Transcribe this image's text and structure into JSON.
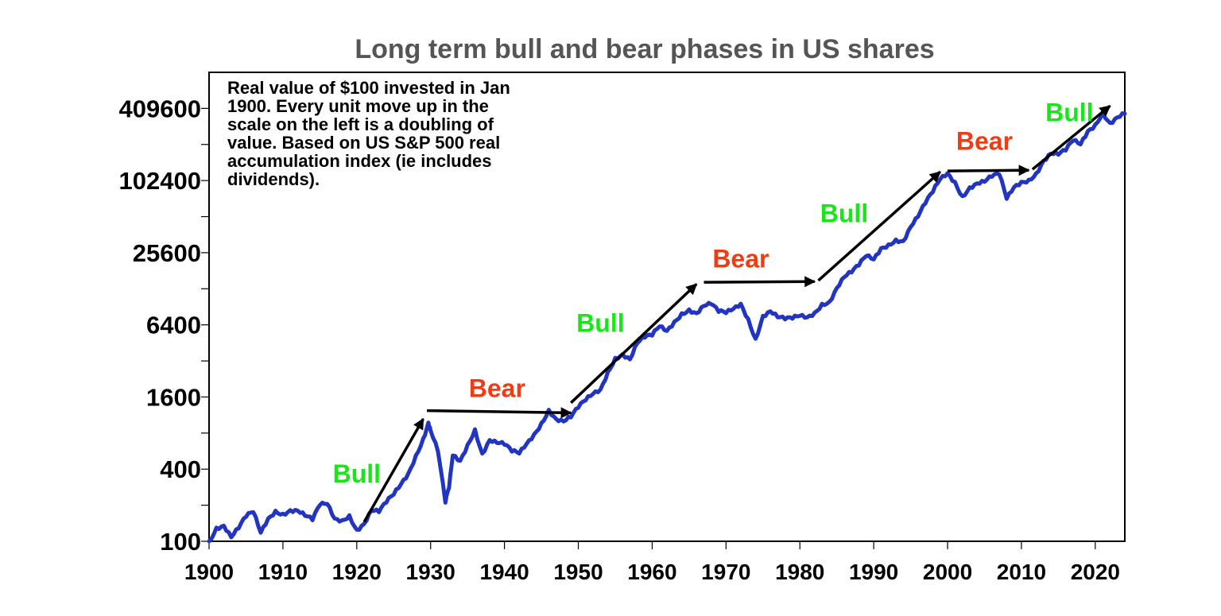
{
  "chart_data": {
    "type": "line",
    "title": "Long term bull and bear phases in US shares",
    "annotation_lines": [
      "Real value of $100 invested in Jan",
      "1900. Every unit move up in the",
      "scale on the left is a doubling of",
      "value. Based on US S&P 500 real",
      "accumulation index (ie includes",
      "dividends)."
    ],
    "y_scale": "log2",
    "ylim": [
      100,
      819200
    ],
    "xlim": [
      1900,
      2024
    ],
    "y_ticks": [
      100,
      400,
      1600,
      6400,
      25600,
      102400,
      409600
    ],
    "y_tick_labels": [
      "100",
      "400",
      "1600",
      "6400",
      "25600",
      "102400",
      "409600"
    ],
    "y_minor_ticks": [
      200,
      800,
      3200,
      12800,
      51200,
      204800
    ],
    "x_ticks": [
      1900,
      1910,
      1920,
      1930,
      1940,
      1950,
      1960,
      1970,
      1980,
      1990,
      2000,
      2010,
      2020
    ],
    "x_tick_labels": [
      "1900",
      "1910",
      "1920",
      "1930",
      "1940",
      "1950",
      "1960",
      "1970",
      "1980",
      "1990",
      "2000",
      "2010",
      "2020"
    ],
    "grid": false,
    "series": [
      {
        "color": "#2235C0",
        "x": [
          1900,
          1901,
          1902,
          1903,
          1904,
          1905,
          1906,
          1907,
          1908,
          1909,
          1910,
          1911,
          1912,
          1913,
          1914,
          1915,
          1916,
          1917,
          1918,
          1919,
          1920,
          1921,
          1922,
          1923,
          1924,
          1925,
          1926,
          1927,
          1928,
          1929,
          1929.7,
          1930,
          1931,
          1932,
          1932.5,
          1933,
          1934,
          1935,
          1936,
          1937,
          1938,
          1939,
          1940,
          1941,
          1942,
          1943,
          1944,
          1945,
          1946,
          1947,
          1948,
          1949,
          1950,
          1951,
          1952,
          1953,
          1954,
          1955,
          1956,
          1957,
          1958,
          1959,
          1960,
          1961,
          1962,
          1963,
          1964,
          1965,
          1966,
          1967,
          1968,
          1969,
          1970,
          1971,
          1972,
          1973,
          1974,
          1975,
          1976,
          1977,
          1978,
          1979,
          1980,
          1981,
          1982,
          1983,
          1984,
          1985,
          1986,
          1987,
          1988,
          1989,
          1990,
          1991,
          1992,
          1993,
          1994,
          1995,
          1996,
          1997,
          1998,
          1999,
          2000,
          2001,
          2002,
          2003,
          2004,
          2005,
          2006,
          2007,
          2008,
          2009,
          2010,
          2011,
          2012,
          2013,
          2014,
          2015,
          2016,
          2017,
          2018,
          2019,
          2020,
          2021,
          2022,
          2023,
          2024
        ],
        "y": [
          100,
          130,
          135,
          108,
          128,
          160,
          175,
          118,
          155,
          180,
          170,
          182,
          180,
          163,
          150,
          200,
          205,
          155,
          150,
          165,
          125,
          140,
          180,
          175,
          210,
          245,
          300,
          370,
          520,
          720,
          980,
          840,
          560,
          210,
          280,
          520,
          470,
          640,
          860,
          540,
          700,
          660,
          640,
          560,
          540,
          650,
          780,
          970,
          1250,
          1050,
          1000,
          1080,
          1300,
          1500,
          1700,
          1850,
          2600,
          3400,
          3650,
          3300,
          4500,
          5000,
          5200,
          6200,
          5700,
          6800,
          8000,
          8600,
          8000,
          9200,
          9500,
          8200,
          8000,
          8700,
          9600,
          7200,
          4900,
          7600,
          8300,
          7400,
          7100,
          7200,
          7600,
          7400,
          8100,
          9600,
          10000,
          13000,
          16000,
          17500,
          20000,
          24000,
          22500,
          28000,
          30000,
          33000,
          32000,
          42000,
          51000,
          66000,
          82000,
          105000,
          118000,
          100000,
          76000,
          90000,
          97000,
          100000,
          110000,
          115000,
          72000,
          90000,
          100000,
          104000,
          118000,
          150000,
          172000,
          168000,
          182000,
          220000,
          205000,
          265000,
          300000,
          380000,
          310000,
          345000,
          370000
        ]
      }
    ],
    "phases": [
      {
        "label": "Bull",
        "color": "#19E619",
        "x_start": 1921,
        "y_start": 145,
        "x_end": 1929,
        "y_end": 1050,
        "label_x": 1920,
        "label_y": 310
      },
      {
        "label": "Bear",
        "color": "#F03C14",
        "x_start": 1929.5,
        "y_start": 1230,
        "x_end": 1949,
        "y_end": 1180,
        "label_x": 1939,
        "label_y": 1600
      },
      {
        "label": "Bull",
        "color": "#19E619",
        "x_start": 1949,
        "y_start": 1430,
        "x_end": 1966,
        "y_end": 14000,
        "label_x": 1953,
        "label_y": 5600
      },
      {
        "label": "Bear",
        "color": "#F03C14",
        "x_start": 1967,
        "y_start": 14500,
        "x_end": 1982,
        "y_end": 14700,
        "label_x": 1972,
        "label_y": 19300
      },
      {
        "label": "Bull",
        "color": "#19E619",
        "x_start": 1982.5,
        "y_start": 15000,
        "x_end": 1999,
        "y_end": 121000,
        "label_x": 1986,
        "label_y": 46000
      },
      {
        "label": "Bear",
        "color": "#F03C14",
        "x_start": 2000,
        "y_start": 123000,
        "x_end": 2011,
        "y_end": 125000,
        "label_x": 2005,
        "label_y": 185000
      },
      {
        "label": "Bull",
        "color": "#19E619",
        "x_start": 2011.5,
        "y_start": 127000,
        "x_end": 2022,
        "y_end": 430000,
        "label_x": 2016.5,
        "label_y": 320000
      }
    ]
  }
}
